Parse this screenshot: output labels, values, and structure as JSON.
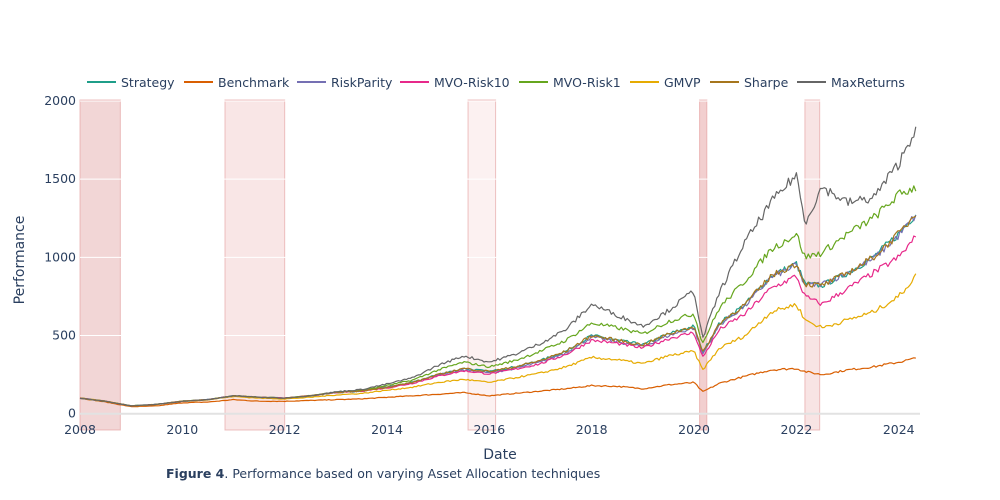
{
  "caption": {
    "label": "Figure 4",
    "text": ". Performance based on varying Asset Allocation techniques"
  },
  "chart_data": {
    "type": "line",
    "title": "",
    "xlabel": "Date",
    "ylabel": "Performance",
    "xlim": [
      "2008-01-01",
      "2024-05-31"
    ],
    "ylim": [
      -40,
      2000
    ],
    "x_ticks": [
      "2008",
      "2010",
      "2012",
      "2014",
      "2016",
      "2018",
      "2020",
      "2022",
      "2024"
    ],
    "y_ticks": [
      0,
      500,
      1000,
      1500,
      2000
    ],
    "grid": true,
    "legend_position": "top",
    "x": [
      "2008-01",
      "2008-07",
      "2009-01",
      "2009-07",
      "2010-01",
      "2010-07",
      "2011-01",
      "2011-07",
      "2012-01",
      "2012-07",
      "2013-01",
      "2013-07",
      "2014-01",
      "2014-07",
      "2015-01",
      "2015-07",
      "2016-01",
      "2016-07",
      "2017-01",
      "2017-07",
      "2018-01",
      "2018-07",
      "2019-01",
      "2019-07",
      "2020-01",
      "2020-03",
      "2020-07",
      "2021-01",
      "2021-07",
      "2022-01",
      "2022-03",
      "2022-07",
      "2023-01",
      "2023-07",
      "2024-01",
      "2024-05"
    ],
    "series": [
      {
        "name": "Strategy",
        "color": "#1f9e89",
        "values": [
          100,
          80,
          50,
          60,
          80,
          90,
          115,
          105,
          100,
          115,
          135,
          145,
          170,
          200,
          250,
          290,
          270,
          300,
          340,
          400,
          500,
          470,
          440,
          510,
          560,
          390,
          580,
          700,
          880,
          960,
          830,
          820,
          900,
          1000,
          1150,
          1280
        ]
      },
      {
        "name": "Benchmark",
        "color": "#d95f02",
        "values": [
          100,
          75,
          45,
          50,
          70,
          75,
          90,
          80,
          80,
          85,
          90,
          95,
          105,
          115,
          125,
          135,
          115,
          130,
          145,
          160,
          180,
          175,
          160,
          185,
          200,
          140,
          195,
          240,
          280,
          290,
          270,
          250,
          280,
          300,
          330,
          355
        ]
      },
      {
        "name": "RiskParity",
        "color": "#7570b3",
        "values": [
          100,
          80,
          50,
          60,
          80,
          90,
          115,
          105,
          100,
          115,
          135,
          145,
          170,
          200,
          250,
          280,
          260,
          290,
          330,
          390,
          490,
          460,
          430,
          500,
          550,
          380,
          570,
          690,
          870,
          950,
          820,
          830,
          900,
          990,
          1140,
          1270
        ]
      },
      {
        "name": "MVO-Risk10",
        "color": "#e7298a",
        "values": [
          100,
          80,
          50,
          60,
          80,
          90,
          115,
          105,
          100,
          115,
          135,
          145,
          165,
          195,
          240,
          275,
          255,
          285,
          320,
          380,
          470,
          450,
          420,
          480,
          520,
          360,
          540,
          640,
          800,
          880,
          750,
          700,
          800,
          900,
          1000,
          1130
        ]
      },
      {
        "name": "MVO-Risk1",
        "color": "#66a61e",
        "values": [
          100,
          80,
          50,
          60,
          80,
          90,
          115,
          105,
          100,
          115,
          140,
          150,
          180,
          215,
          280,
          330,
          300,
          340,
          400,
          470,
          580,
          550,
          510,
          590,
          640,
          450,
          680,
          850,
          1050,
          1150,
          1000,
          1030,
          1150,
          1250,
          1400,
          1450
        ]
      },
      {
        "name": "GMVP",
        "color": "#e6ab02",
        "values": [
          100,
          80,
          50,
          60,
          80,
          90,
          110,
          100,
          95,
          105,
          120,
          130,
          150,
          170,
          200,
          220,
          200,
          230,
          260,
          300,
          360,
          345,
          320,
          370,
          400,
          280,
          420,
          500,
          650,
          700,
          600,
          550,
          600,
          650,
          750,
          880
        ]
      },
      {
        "name": "Sharpe",
        "color": "#a6761d",
        "values": [
          100,
          80,
          50,
          60,
          80,
          90,
          115,
          105,
          100,
          115,
          135,
          145,
          170,
          200,
          250,
          290,
          270,
          300,
          340,
          400,
          500,
          470,
          440,
          510,
          560,
          390,
          580,
          700,
          880,
          960,
          830,
          820,
          900,
          1000,
          1150,
          1280
        ]
      },
      {
        "name": "MaxReturns",
        "color": "#666666",
        "values": [
          100,
          80,
          50,
          60,
          80,
          90,
          115,
          105,
          100,
          115,
          140,
          155,
          190,
          230,
          310,
          370,
          330,
          380,
          450,
          540,
          700,
          630,
          560,
          660,
          790,
          480,
          780,
          1100,
          1350,
          1530,
          1220,
          1450,
          1350,
          1380,
          1600,
          1830
        ]
      }
    ],
    "shaded_regions": [
      {
        "start": "2008-01-01",
        "end": "2008-10-15",
        "fill": "#e8b5b5",
        "opacity": 0.55
      },
      {
        "start": "2010-11-01",
        "end": "2012-01-01",
        "fill": "#eebcbc",
        "opacity": 0.38
      },
      {
        "start": "2015-08-01",
        "end": "2016-02-15",
        "fill": "#f6d8d8",
        "opacity": 0.35
      },
      {
        "start": "2020-02-10",
        "end": "2020-04-01",
        "fill": "#e8a8a8",
        "opacity": 0.55
      },
      {
        "start": "2022-03-01",
        "end": "2022-06-15",
        "fill": "#eebcbc",
        "opacity": 0.4
      }
    ]
  }
}
